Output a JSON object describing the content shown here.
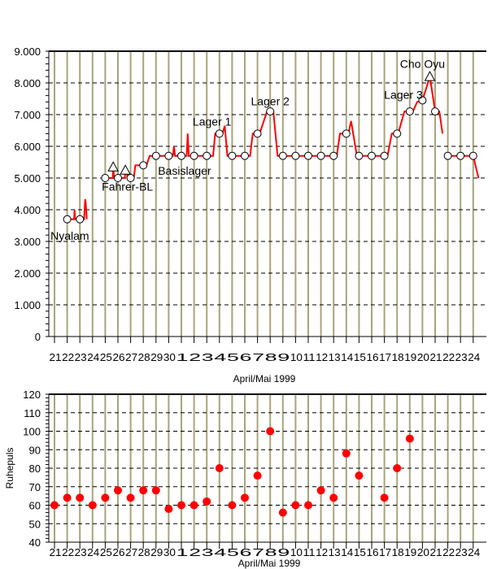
{
  "chart_data": [
    {
      "type": "line",
      "xlabel": "April/Mai 1999",
      "ylabel": "",
      "ylim": [
        0,
        9000
      ],
      "yticks": [
        "0",
        "1.000",
        "2.000",
        "3.000",
        "4.000",
        "5.000",
        "6.000",
        "7.000",
        "8.000",
        "9.000"
      ],
      "ytick_values": [
        0,
        1000,
        2000,
        3000,
        4000,
        5000,
        6000,
        7000,
        8000,
        9000
      ],
      "xtick_labels": [
        "21",
        "22",
        "23",
        "24",
        "25",
        "26",
        "27",
        "28",
        "29",
        "30",
        "1",
        "2",
        "3",
        "4",
        "5",
        "6",
        "7",
        "8",
        "9",
        "10",
        "11",
        "12",
        "13",
        "14",
        "15",
        "16",
        "17",
        "18",
        "19",
        "20",
        "21",
        "22",
        "23",
        "24"
      ],
      "xrange": [
        "1999-04-21",
        "1999-05-24"
      ],
      "grid": {
        "horizontal": "dashed",
        "vertical": true
      },
      "line_color": "#ff0000",
      "grid_color": "#a8a47c",
      "altitude_track": [
        [
          [
            "1999-04-22T00:00",
            3700
          ],
          [
            "1999-04-22T13:00",
            3700
          ],
          [
            "1999-04-22T14:00",
            4000
          ],
          [
            "1999-04-22T15:00",
            3700
          ],
          [
            "1999-04-23T08:00",
            3700
          ],
          [
            "1999-04-23T10:00",
            4330
          ],
          [
            "1999-04-23T11:00",
            4250
          ],
          [
            "1999-04-23T13:00",
            3700
          ]
        ],
        [
          [
            "1999-04-25T00:00",
            5000
          ],
          [
            "1999-04-25T14:00",
            5000
          ],
          [
            "1999-04-25T15:00",
            5300
          ],
          [
            "1999-04-25T17:00",
            5000
          ],
          [
            "1999-04-26T00:00",
            5000
          ],
          [
            "1999-04-26T13:00",
            5000
          ],
          [
            "1999-04-26T14:00",
            5200
          ],
          [
            "1999-04-26T17:00",
            5200
          ],
          [
            "1999-04-26T18:00",
            5000
          ],
          [
            "1999-04-27T06:00",
            5000
          ],
          [
            "1999-04-27T09:00",
            5400
          ],
          [
            "1999-04-28T06:00",
            5400
          ],
          [
            "1999-04-28T12:00",
            5700
          ],
          [
            "1999-04-30T08:00",
            5700
          ],
          [
            "1999-04-30T10:00",
            6000
          ],
          [
            "1999-04-30T12:00",
            5700
          ],
          [
            "1999-05-01T10:00",
            5700
          ],
          [
            "1999-05-01T12:00",
            6400
          ],
          [
            "1999-05-01T14:00",
            5700
          ],
          [
            "1999-05-03T12:00",
            5700
          ],
          [
            "1999-05-03T16:00",
            6400
          ],
          [
            "1999-05-04T06:00",
            6400
          ],
          [
            "1999-05-04T10:00",
            6650
          ],
          [
            "1999-05-04T15:00",
            5700
          ],
          [
            "1999-05-06T10:00",
            5700
          ],
          [
            "1999-05-06T15:00",
            6400
          ],
          [
            "1999-05-07T04:00",
            6400
          ],
          [
            "1999-05-07T10:00",
            6700
          ],
          [
            "1999-05-07T18:00",
            7100
          ],
          [
            "1999-05-08T06:00",
            7100
          ],
          [
            "1999-05-08T14:00",
            5700
          ],
          [
            "1999-05-13T06:00",
            5700
          ],
          [
            "1999-05-13T12:00",
            6400
          ],
          [
            "1999-05-14T04:00",
            6400
          ],
          [
            "1999-05-14T09:00",
            6800
          ],
          [
            "1999-05-14T20:00",
            5700
          ],
          [
            "1999-05-17T06:00",
            5700
          ],
          [
            "1999-05-17T14:00",
            6400
          ],
          [
            "1999-05-18T02:00",
            6400
          ],
          [
            "1999-05-18T14:00",
            7100
          ],
          [
            "1999-05-19T06:00",
            7100
          ],
          [
            "1999-05-19T14:00",
            7400
          ],
          [
            "1999-05-20T00:00",
            7450
          ],
          [
            "1999-05-20T14:00",
            8200
          ],
          [
            "1999-05-21T00:00",
            7100
          ],
          [
            "1999-05-21T08:00",
            7100
          ],
          [
            "1999-05-21T14:00",
            6400
          ]
        ],
        [
          [
            "1999-05-22T00:00",
            5700
          ],
          [
            "1999-05-24T00:00",
            5700
          ],
          [
            "1999-05-24T10:00",
            5000
          ]
        ]
      ],
      "camp_points": [
        [
          "1999-04-22",
          3700
        ],
        [
          "1999-04-23",
          3700
        ],
        [
          "1999-04-25",
          5000
        ],
        [
          "1999-04-26",
          5000
        ],
        [
          "1999-04-27",
          5000
        ],
        [
          "1999-04-28",
          5400
        ],
        [
          "1999-04-29",
          5700
        ],
        [
          "1999-04-30",
          5700
        ],
        [
          "1999-05-01",
          5700
        ],
        [
          "1999-05-02",
          5700
        ],
        [
          "1999-05-03",
          5700
        ],
        [
          "1999-05-04",
          6400
        ],
        [
          "1999-05-05",
          5700
        ],
        [
          "1999-05-06",
          5700
        ],
        [
          "1999-05-07",
          6400
        ],
        [
          "1999-05-08",
          7100
        ],
        [
          "1999-05-09",
          5700
        ],
        [
          "1999-05-10",
          5700
        ],
        [
          "1999-05-11",
          5700
        ],
        [
          "1999-05-12",
          5700
        ],
        [
          "1999-05-13",
          5700
        ],
        [
          "1999-05-14",
          6400
        ],
        [
          "1999-05-15",
          5700
        ],
        [
          "1999-05-16",
          5700
        ],
        [
          "1999-05-17",
          5700
        ],
        [
          "1999-05-18",
          6400
        ],
        [
          "1999-05-19",
          7100
        ],
        [
          "1999-05-20",
          7450
        ],
        [
          "1999-05-21",
          7100
        ],
        [
          "1999-05-22",
          5700
        ],
        [
          "1999-05-23",
          5700
        ],
        [
          "1999-05-24",
          5700
        ]
      ],
      "summit_points": [
        [
          "1999-04-25T15:00",
          5350
        ],
        [
          "1999-04-26T14:00",
          5250
        ],
        [
          "1999-05-20T14:00",
          8201
        ]
      ],
      "annotations": [
        {
          "text": "Nyalam",
          "x": "1999-04-22T05:00",
          "y": 3050
        },
        {
          "text": "Fahrer-BL",
          "x": "1999-04-26T18:00",
          "y": 4600
        },
        {
          "text": "Basislager",
          "x": "1999-05-01T06:00",
          "y": 5100
        },
        {
          "text": "Lager 1",
          "x": "1999-05-03T10:00",
          "y": 6650
        },
        {
          "text": "Lager 2",
          "x": "1999-05-08T00:00",
          "y": 7300
        },
        {
          "text": "Lager 3",
          "x": "1999-05-18T12:00",
          "y": 7500
        },
        {
          "text": "Cho Oyu",
          "x": "1999-05-20T00:00",
          "y": 8470
        }
      ]
    },
    {
      "type": "scatter",
      "xlabel": "April/Mai 1999",
      "ylabel": "Ruhepuls",
      "ylim": [
        40,
        120
      ],
      "yticks": [
        "40",
        "50",
        "60",
        "70",
        "80",
        "90",
        "100",
        "110",
        "120"
      ],
      "ytick_values": [
        40,
        50,
        60,
        70,
        80,
        90,
        100,
        110,
        120
      ],
      "xtick_labels": [
        "21",
        "22",
        "23",
        "24",
        "25",
        "26",
        "27",
        "28",
        "29",
        "30",
        "1",
        "2",
        "3",
        "4",
        "5",
        "6",
        "7",
        "8",
        "9",
        "10",
        "11",
        "12",
        "13",
        "14",
        "15",
        "16",
        "17",
        "18",
        "19",
        "20",
        "21",
        "22",
        "23",
        "24"
      ],
      "grid": {
        "horizontal": "dashed",
        "vertical": true
      },
      "marker_color": "#ff0000",
      "values": [
        60,
        64,
        64,
        60,
        64,
        68,
        64,
        68,
        68,
        58,
        60,
        60,
        62,
        80,
        60,
        64,
        76,
        100,
        56,
        60,
        60,
        68,
        64,
        88,
        76,
        null,
        64,
        80,
        96,
        null,
        null,
        null,
        null,
        null
      ]
    }
  ]
}
